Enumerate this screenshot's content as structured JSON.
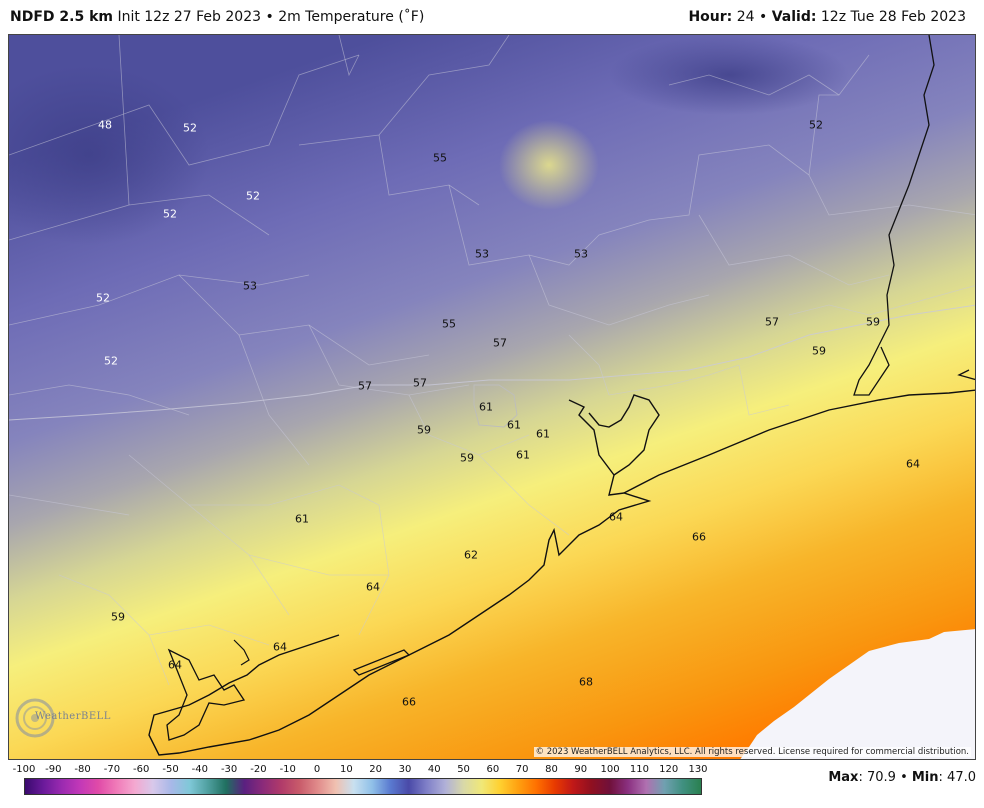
{
  "header": {
    "model": "NDFD 2.5 km",
    "init_text": "Init 12z 27 Feb 2023",
    "separator": "•",
    "field": "2m Temperature (˚F)",
    "hour_label": "Hour:",
    "hour_value": "24",
    "valid_label": "Valid:",
    "valid_value": "12z Tue 28 Feb 2023"
  },
  "map": {
    "copyright": "© 2023 WeatherBELL Analytics, LLC. All rights reserved. License required for commercial distribution.",
    "logo_text": "WeatherBELL",
    "labels": [
      {
        "text": "48",
        "light": true
      },
      {
        "text": "52",
        "light": true
      },
      {
        "text": "52",
        "light": true
      },
      {
        "text": "52",
        "light": true
      },
      {
        "text": "52",
        "light": true
      },
      {
        "text": "52",
        "light": true
      },
      {
        "text": "53",
        "light": false
      },
      {
        "text": "55",
        "light": false
      },
      {
        "text": "53",
        "light": false
      },
      {
        "text": "53",
        "light": false
      },
      {
        "text": "52",
        "light": false
      },
      {
        "text": "55",
        "light": false
      },
      {
        "text": "57",
        "light": false
      },
      {
        "text": "57",
        "light": false
      },
      {
        "text": "57",
        "light": false
      },
      {
        "text": "57",
        "light": false
      },
      {
        "text": "59",
        "light": false
      },
      {
        "text": "59",
        "light": false
      },
      {
        "text": "61",
        "light": false
      },
      {
        "text": "61",
        "light": false
      },
      {
        "text": "61",
        "light": false
      },
      {
        "text": "59",
        "light": false
      },
      {
        "text": "59",
        "light": false
      },
      {
        "text": "61",
        "light": false
      },
      {
        "text": "64",
        "light": false
      },
      {
        "text": "64",
        "light": false
      },
      {
        "text": "61",
        "light": false
      },
      {
        "text": "66",
        "light": false
      },
      {
        "text": "62",
        "light": false
      },
      {
        "text": "64",
        "light": false
      },
      {
        "text": "59",
        "light": false
      },
      {
        "text": "64",
        "light": false
      },
      {
        "text": "64",
        "light": false
      },
      {
        "text": "68",
        "light": false
      },
      {
        "text": "66",
        "light": false
      }
    ]
  },
  "legend": {
    "ticks": [
      "-100",
      "-90",
      "-80",
      "-70",
      "-60",
      "-50",
      "-40",
      "-30",
      "-20",
      "-10",
      "0",
      "10",
      "20",
      "30",
      "40",
      "50",
      "60",
      "70",
      "80",
      "90",
      "100",
      "110",
      "120",
      "130"
    ],
    "colors": [
      "#3a0a6e",
      "#6a1a9a",
      "#9a2ab0",
      "#c238b8",
      "#e04aa8",
      "#f07ab8",
      "#f4a8d0",
      "#d8c8ea",
      "#a8b8e8",
      "#80c8d8",
      "#50a0a0",
      "#207060",
      "#5a2080",
      "#8a2a7a",
      "#b03a6a",
      "#c85a6a",
      "#e08a8a",
      "#f0c0b0",
      "#c8e0f0",
      "#90c0e8",
      "#5a7ad0",
      "#4a4aa8",
      "#8080c8",
      "#b0b0d8",
      "#d8d8a8",
      "#f0e878",
      "#ffd030",
      "#ffa010",
      "#ff7000",
      "#e83a00",
      "#c01818",
      "#901020",
      "#70103a",
      "#8a3080",
      "#b070b0",
      "#70a0b0",
      "#409080",
      "#2a8050"
    ]
  },
  "stats": {
    "max_label": "Max",
    "max_value": ": 70.9",
    "min_label": "Min",
    "min_value": ": 47.0"
  }
}
